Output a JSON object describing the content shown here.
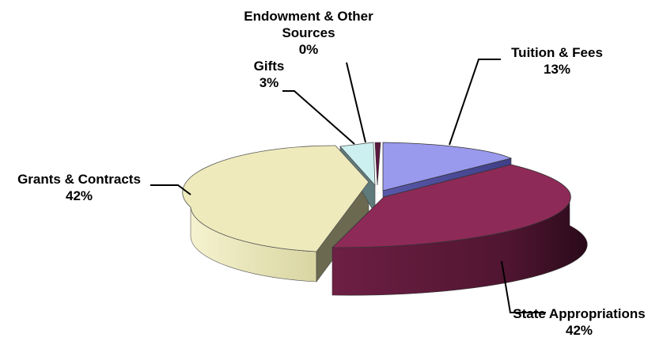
{
  "chart_data": {
    "type": "pie",
    "style": "3d-exploded",
    "title": "",
    "slices": [
      {
        "label": "Tuition & Fees",
        "value": 13,
        "value_label": "13%",
        "color": "#9999ee"
      },
      {
        "label": "State Appropriations",
        "value": 42,
        "value_label": "42%",
        "color": "#8e2a57"
      },
      {
        "label": "Grants & Contracts",
        "value": 42,
        "value_label": "42%",
        "color": "#eeeabb"
      },
      {
        "label": "Gifts",
        "value": 3,
        "value_label": "3%",
        "color": "#ccefef"
      },
      {
        "label": "Endowment & Other Sources",
        "value": 0,
        "value_label": "0%",
        "color": "#5a1840"
      }
    ]
  },
  "labels": {
    "tuition": {
      "line1": "Tuition & Fees",
      "line2": "13%"
    },
    "state": {
      "line1": "State Appropriations",
      "line2": "42%"
    },
    "grants": {
      "line1": "Grants & Contracts",
      "line2": "42%"
    },
    "gifts": {
      "line1": "Gifts",
      "line2": "3%"
    },
    "endowment": {
      "line1": "Endowment & Other",
      "line2": "Sources",
      "line3": "0%"
    }
  }
}
